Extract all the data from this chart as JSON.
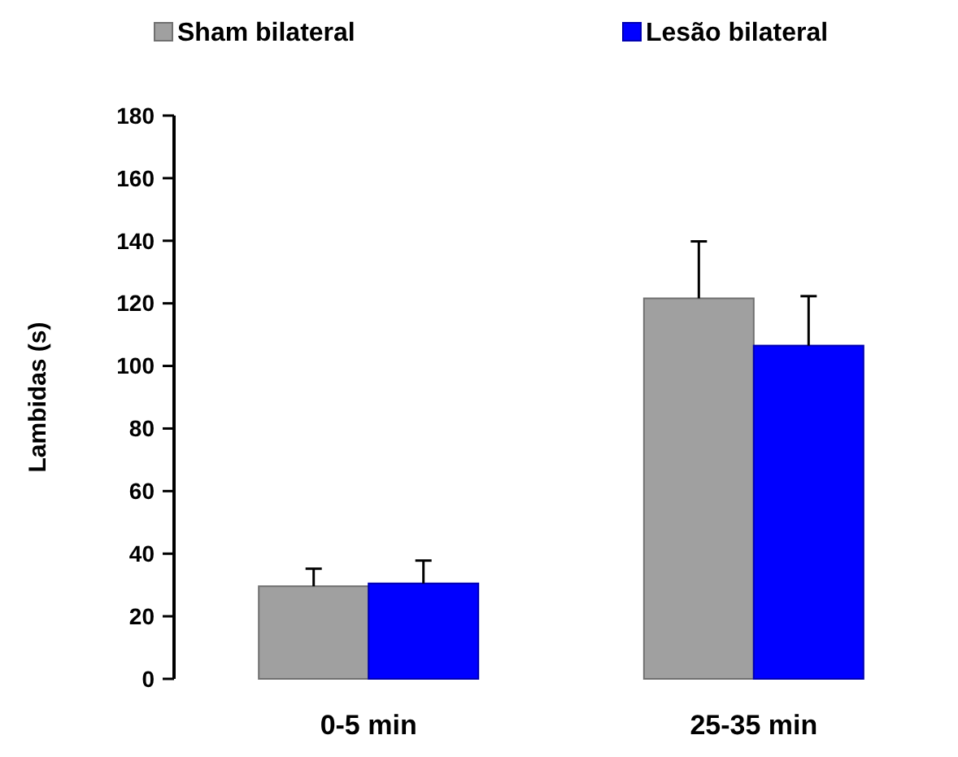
{
  "chart_data": {
    "type": "bar",
    "categories": [
      "0-5 min",
      "25-35 min"
    ],
    "ylabel": "Lambidas (s)",
    "ylim": [
      0,
      180
    ],
    "yticks": [
      0,
      20,
      40,
      60,
      80,
      100,
      120,
      140,
      160,
      180
    ],
    "legend": "top",
    "grid": false,
    "series": [
      {
        "name": "Sham bilateral",
        "color": "#a0a0a0",
        "values": [
          29.6,
          121.6
        ],
        "errors": [
          [
            29.6,
            35.2
          ],
          [
            121.6,
            139.8
          ]
        ]
      },
      {
        "name": "Lesão bilateral",
        "color": "#0000ff",
        "values": [
          30.5,
          106.5
        ],
        "errors": [
          [
            30.5,
            37.8
          ],
          [
            106.5,
            122.3
          ]
        ]
      }
    ]
  }
}
